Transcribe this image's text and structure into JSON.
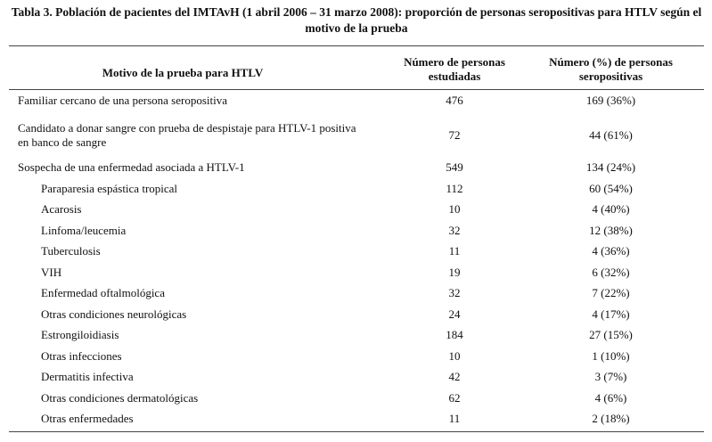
{
  "title": "Tabla 3. Población de pacientes del IMTAvH (1 abril 2006 – 31 marzo 2008): proporción de personas seropositivas para HTLV según el motivo de la prueba",
  "table": {
    "headers": [
      "Motivo de la prueba para HTLV",
      "Número de personas estudiadas",
      "Número (%) de personas seropositivas"
    ],
    "rows": [
      {
        "label": "Familiar cercano de una persona seropositiva",
        "studied": "476",
        "positive": "169 (36%)"
      },
      {
        "label": "Candidato a donar sangre con prueba de despistaje para HTLV-1 positiva en banco de sangre",
        "studied": "72",
        "positive": "44 (61%)"
      },
      {
        "label": "Sospecha de una enfermedad asociada a HTLV-1",
        "studied": "549",
        "positive": "134 (24%)",
        "subgroups": [
          {
            "label": "Paraparesia espástica tropical",
            "studied": "112",
            "positive": "60 (54%)"
          },
          {
            "label": "Acarosis",
            "studied": "10",
            "positive": "4 (40%)"
          },
          {
            "label": "Linfoma/leucemia",
            "studied": "32",
            "positive": "12 (38%)"
          },
          {
            "label": "Tuberculosis",
            "studied": "11",
            "positive": "4 (36%)"
          },
          {
            "label": "VIH",
            "studied": "19",
            "positive": "6 (32%)"
          },
          {
            "label": "Enfermedad oftalmológica",
            "studied": "32",
            "positive": "7 (22%)"
          },
          {
            "label": "Otras condiciones neurológicas",
            "studied": "24",
            "positive": "4 (17%)"
          },
          {
            "label": "Estrongiloidiasis",
            "studied": "184",
            "positive": "27 (15%)"
          },
          {
            "label": "Otras infecciones",
            "studied": "10",
            "positive": "1 (10%)"
          },
          {
            "label": "Dermatitis infectiva",
            "studied": "42",
            "positive": "3 (7%)"
          },
          {
            "label": "Otras condiciones dermatológicas",
            "studied": "62",
            "positive": "4 (6%)"
          },
          {
            "label": "Otras enfermedades",
            "studied": "11",
            "positive": "2 (18%)"
          }
        ]
      }
    ]
  }
}
